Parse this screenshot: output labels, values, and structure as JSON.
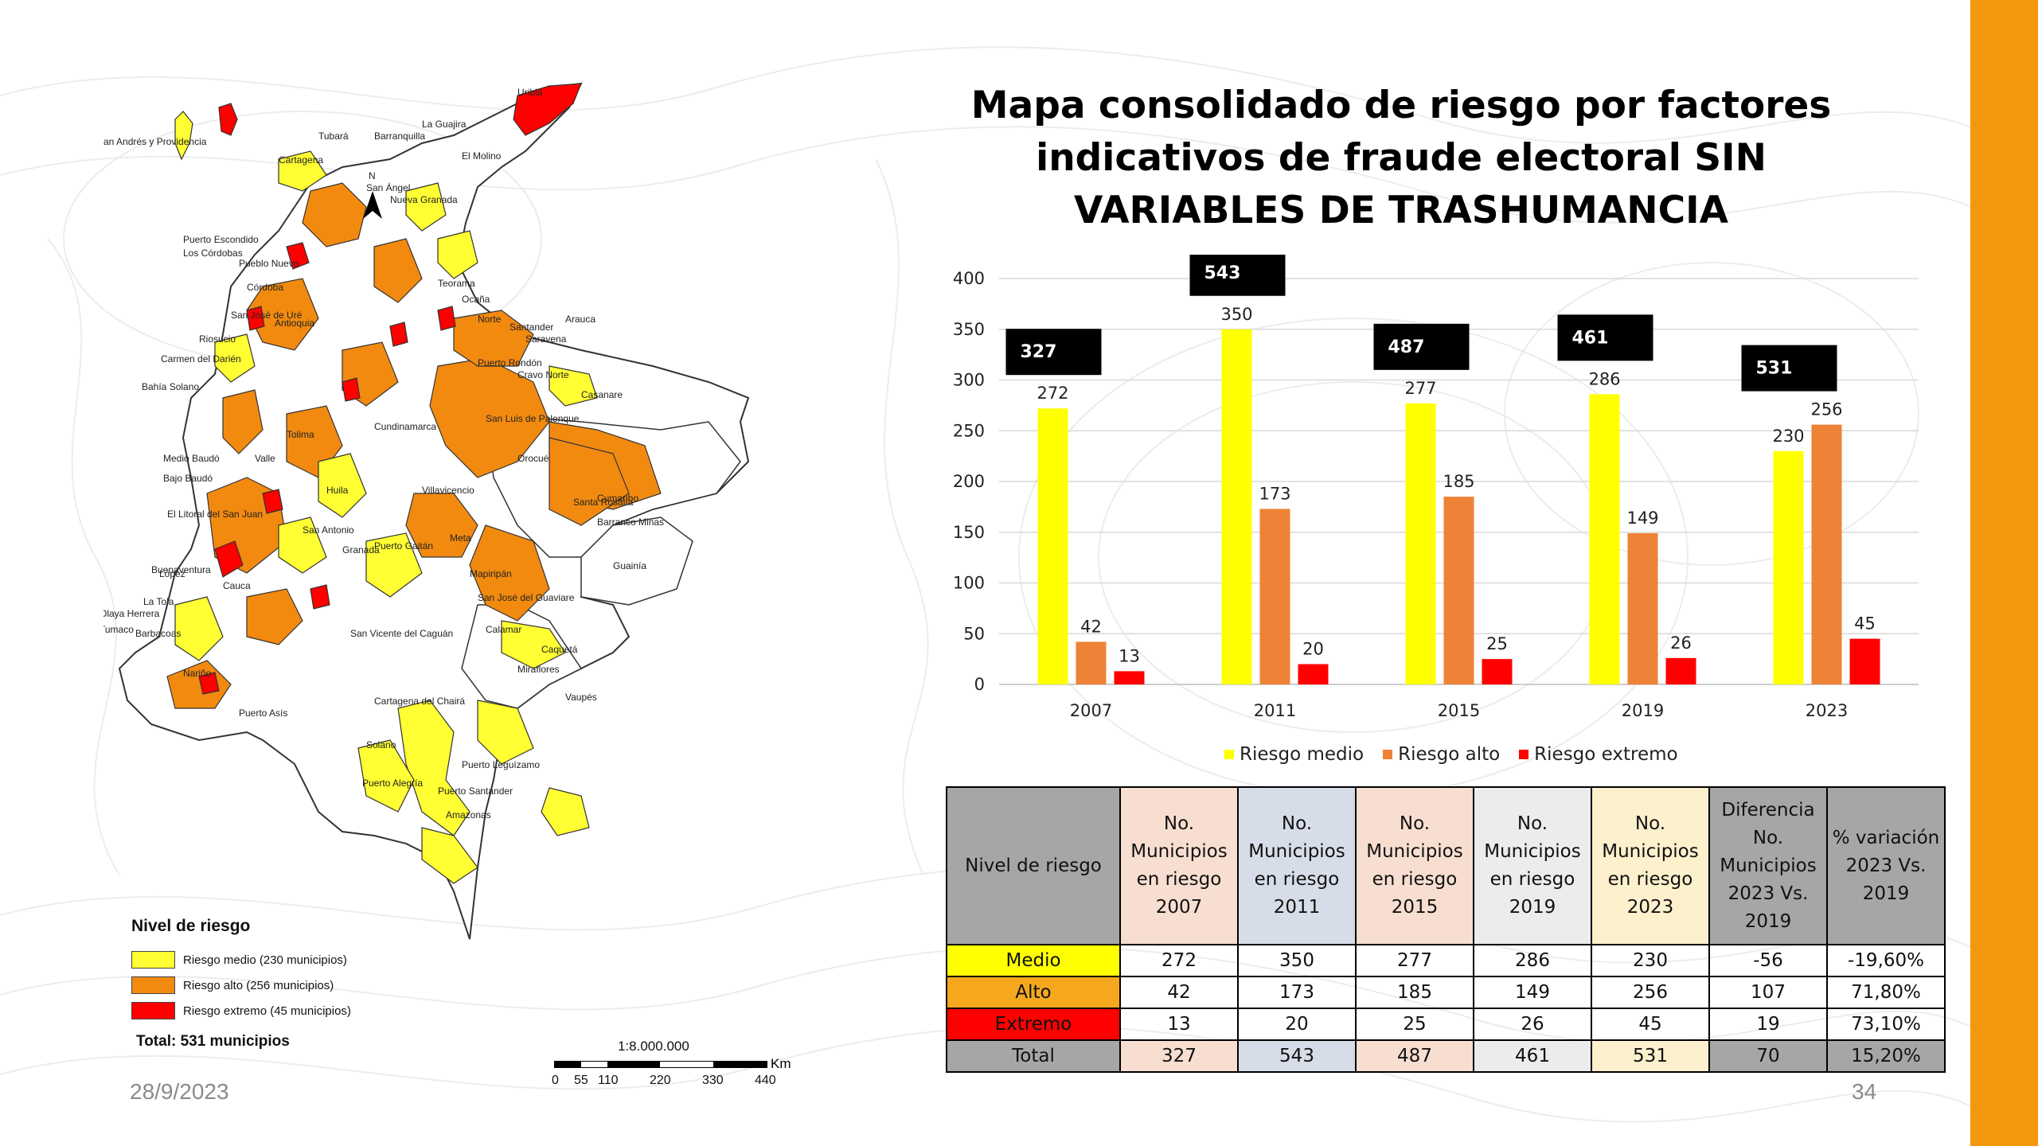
{
  "slide": {
    "title_lines": [
      "Mapa consolidado de riesgo por factores",
      "indicativos de fraude electoral SIN",
      "VARIABLES DE TRASHUMANCIA"
    ],
    "date": "28/9/2023",
    "page_number": "34",
    "accent_color": "#f5960f"
  },
  "map": {
    "legend_title": "Nivel de riesgo",
    "legend_items": [
      {
        "label": "Riesgo medio (230 municipios)",
        "color": "#ffff33"
      },
      {
        "label": "Riesgo alto (256 municipios)",
        "color": "#f28a10"
      },
      {
        "label": "Riesgo extremo (45 municipios)",
        "color": "#ff0000"
      }
    ],
    "total_label": "Total: 531 municipios",
    "north_label": "N",
    "scale": {
      "ratio": "1:8.000.000",
      "unit": "Km",
      "ticks": [
        "0",
        "55",
        "110",
        "220",
        "330",
        "440"
      ]
    },
    "place_labels": [
      "San Andrés y Providencia",
      "Uribia",
      "La Guajira",
      "El Molino",
      "Tubará",
      "Barranquilla",
      "Cartagena",
      "San Ángel",
      "Nueva Granada",
      "Puerto Escondido",
      "Los Córdobas",
      "Pueblo Nuevo",
      "Córdoba",
      "San José de Uré",
      "Riosucio",
      "Antioquia",
      "Carmen del Darién",
      "Bahía Solano",
      "Medio Baudó",
      "Bajo Baudó",
      "El Litoral del San Juan",
      "Buenaventura",
      "López",
      "La Tola",
      "Olaya Herrera",
      "Tumaco",
      "Barbacoas",
      "Arauca",
      "Saravena",
      "Puerto Rondón",
      "Cravo Norte",
      "San Luis de Palenque",
      "Orocué",
      "Santa Rosalía",
      "Cumaribo",
      "Puerto Gaitán",
      "Mapiripán",
      "Barranco Minas",
      "Guainía",
      "Meta",
      "San José del Guaviare",
      "Calamar",
      "Miraflores",
      "San Vicente del Caguán",
      "Cartagena del Chairá",
      "Solano",
      "Puerto Leguízamo",
      "Puerto Alegría",
      "Puerto Santander",
      "Amazonas",
      "San Antonio",
      "Granada",
      "Vaupés",
      "Caquetá",
      "Teorama",
      "Ocaña",
      "Norte",
      "Santander",
      "Casanare",
      "Villavicencio",
      "Cundinamarca",
      "Tolima",
      "Huila",
      "Puerto Asís",
      "Valle",
      "Cauca",
      "Nariño"
    ]
  },
  "chart_data": {
    "type": "bar",
    "categories": [
      "2007",
      "2011",
      "2015",
      "2019",
      "2023"
    ],
    "series": [
      {
        "name": "Riesgo medio",
        "values": [
          272,
          350,
          277,
          286,
          230
        ],
        "color": "#ffff00"
      },
      {
        "name": "Riesgo alto",
        "values": [
          42,
          173,
          185,
          149,
          256
        ],
        "color": "#ee8236"
      },
      {
        "name": "Riesgo extremo",
        "values": [
          13,
          20,
          25,
          26,
          45
        ],
        "color": "#ff0000"
      }
    ],
    "totals": [
      327,
      543,
      487,
      461,
      531
    ],
    "ylim": [
      0,
      400
    ],
    "yticks": [
      0,
      50,
      100,
      150,
      200,
      250,
      300,
      350,
      400
    ],
    "grid": true,
    "legend_position": "bottom",
    "title": "",
    "xlabel": "",
    "ylabel": ""
  },
  "table": {
    "headers": [
      "Nivel de riesgo",
      "No. Municipios en riesgo 2007",
      "No. Municipios en riesgo 2011",
      "No. Municipios en riesgo 2015",
      "No. Municipios en riesgo 2019",
      "No. Municipios en riesgo 2023",
      "Diferencia No. Municipios 2023 Vs. 2019",
      "% variación 2023 Vs. 2019"
    ],
    "rows": [
      [
        "Medio",
        "272",
        "350",
        "277",
        "286",
        "230",
        "-56",
        "-19,60%"
      ],
      [
        "Alto",
        "42",
        "173",
        "185",
        "149",
        "256",
        "107",
        "71,80%"
      ],
      [
        "Extremo",
        "13",
        "20",
        "25",
        "26",
        "45",
        "19",
        "73,10%"
      ],
      [
        "Total",
        "327",
        "543",
        "487",
        "461",
        "531",
        "70",
        "15,20%"
      ]
    ]
  }
}
